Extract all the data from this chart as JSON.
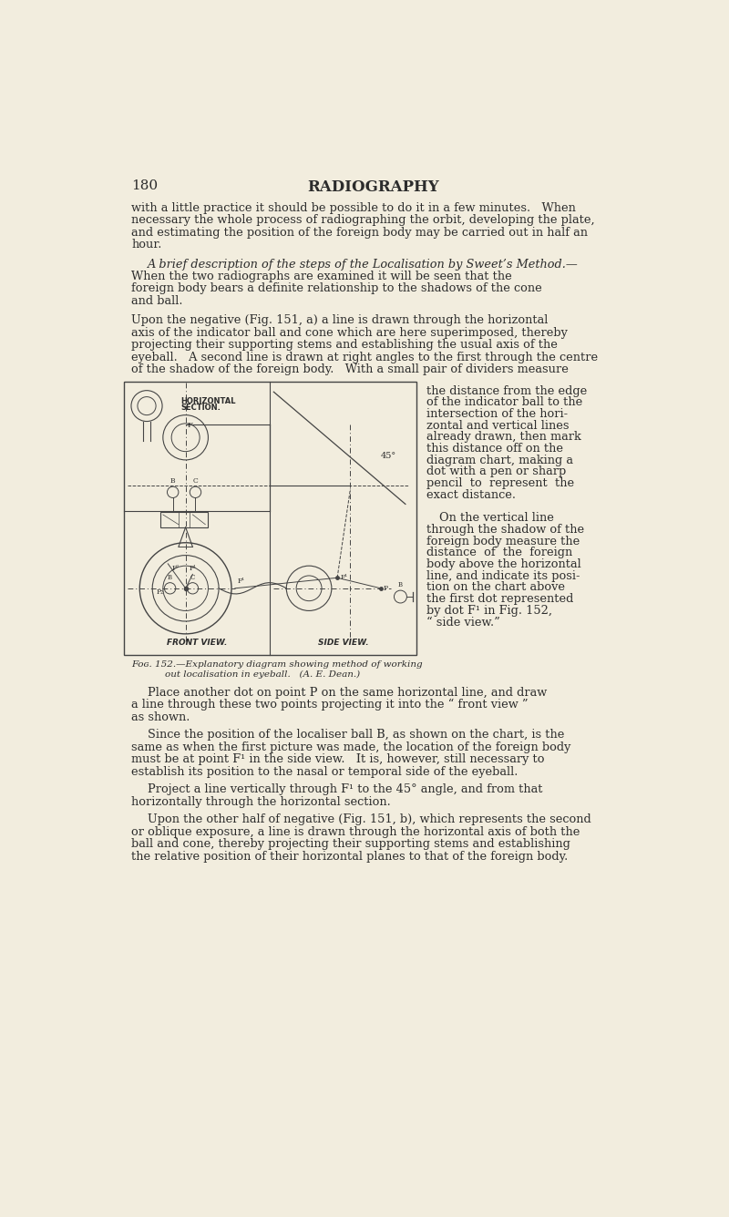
{
  "bg_color": "#f2edde",
  "text_color": "#2c2c2c",
  "page_number": "180",
  "page_header": "RADIOGRAPHY",
  "para1_lines": [
    "with a little practice it should be possible to do it in a few minutes.   When",
    "necessary the whole process of radiographing the orbit, developing the plate,",
    "and estimating the position of the foreign body may be carried out in half an",
    "hour."
  ],
  "para2_italic": "A brief description of the steps of the Localisation by Sweet’s Method.—",
  "para2_lines": [
    "When the two radiographs are examined it will be seen that the",
    "foreign body bears a definite relationship to the shadows of the cone",
    "and ball."
  ],
  "para3_lines": [
    "Upon the negative (Fig. 151, a) a line is drawn through the horizontal",
    "axis of the indicator ball and cone which are here superimposed, thereby",
    "projecting their supporting stems and establishing the usual axis of the",
    "eyeball.   A second line is drawn at right angles to the first through the centre",
    "of the shadow of the foreign body.   With a small pair of dividers measure"
  ],
  "right_col_lines": [
    "the distance from the edge",
    "of the indicator ball to the",
    "intersection of the hori-",
    "zontal and vertical lines",
    "already drawn, then mark",
    "this distance off on the",
    "diagram chart, making a",
    "dot with a pen or sharp",
    "pencil  to  represent  the",
    "exact distance.",
    "",
    "On the vertical line",
    "through the shadow of the",
    "foreign body measure the",
    "distance  of  the  foreign",
    "body above the horizontal",
    "line, and indicate its posi-",
    "tion on the chart above",
    "the first dot represented",
    "by dot F¹ in Fig. 152,",
    "“ side view.”"
  ],
  "caption_line1": "Fᴏɢ. 152.—Explanatory diagram showing method of working",
  "caption_line2": "out localisation in eyeball.   (A. E. Dean.)",
  "bottom_blocks": [
    {
      "indent": true,
      "lines": [
        "Place another dot on point P on the same horizontal line, and draw",
        "a line through these two points projecting it into the “ front view ”",
        "as shown."
      ]
    },
    {
      "indent": true,
      "lines": [
        "Since the position of the localiser ball B, as shown on the chart, is the",
        "same as when the first picture was made, the location of the foreign body",
        "must be at point F¹ in the side view.   It is, however, still necessary to",
        "establish its position to the nasal or temporal side of the eyeball."
      ]
    },
    {
      "indent": true,
      "lines": [
        "Project a line vertically through F¹ to the 45° angle, and from that",
        "horizontally through the horizontal section."
      ]
    },
    {
      "indent": true,
      "lines": [
        "Upon the other half of negative (Fig. 151, b), which represents the second",
        "or oblique exposure, a line is drawn through the horizontal axis of both the",
        "ball and cone, thereby projecting their supporting stems and establishing",
        "the relative position of their horizontal planes to that of the foreign body."
      ]
    }
  ]
}
